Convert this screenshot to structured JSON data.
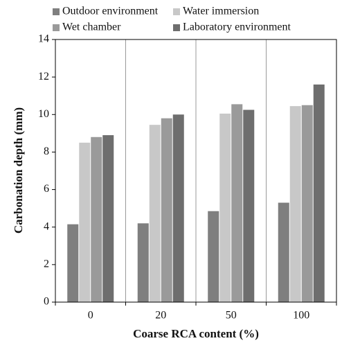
{
  "chart_data": {
    "type": "bar",
    "x_label": "Coarse RCA content (%)",
    "y_label": "Carbonation depth (mm)",
    "categories": [
      "0",
      "20",
      "50",
      "100"
    ],
    "series": [
      {
        "name": "Outdoor environment",
        "color": "#7f7f7f",
        "values": [
          4.15,
          4.2,
          4.85,
          5.3
        ]
      },
      {
        "name": "Water immersion",
        "color": "#c8c8c8",
        "values": [
          8.5,
          9.45,
          10.05,
          10.45
        ]
      },
      {
        "name": "Wet chamber",
        "color": "#9a9a9a",
        "values": [
          8.8,
          9.8,
          10.55,
          10.5
        ]
      },
      {
        "name": "Laboratory environment",
        "color": "#6e6e6e",
        "values": [
          8.9,
          10.0,
          10.25,
          11.6
        ]
      }
    ],
    "ylim": [
      0,
      14
    ],
    "yticks": [
      0,
      2,
      4,
      6,
      8,
      10,
      12,
      14
    ]
  }
}
